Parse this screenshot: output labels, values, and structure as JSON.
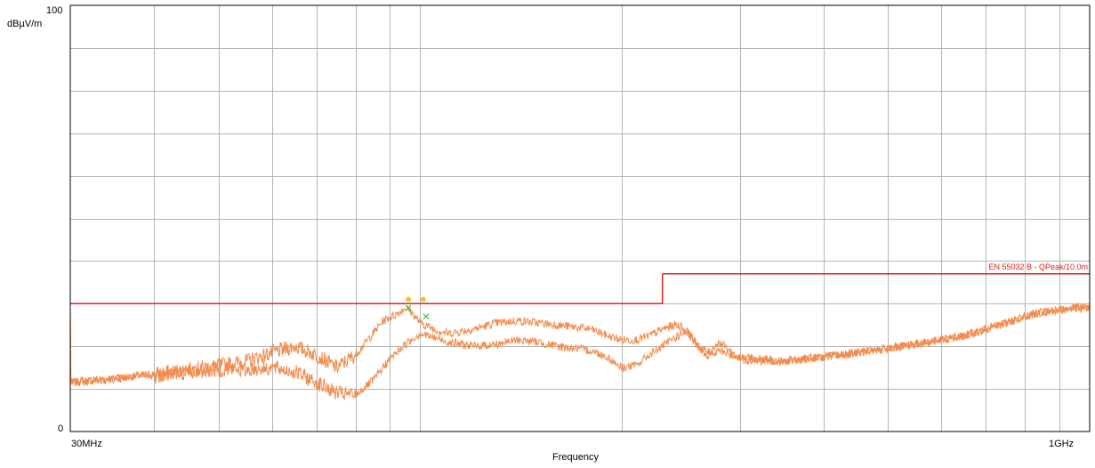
{
  "chart_data": {
    "type": "line",
    "title": "",
    "ylabel": "dBµV/m",
    "xlabel": "Frequency",
    "x_scale": "log",
    "xlim": [
      30,
      1000
    ],
    "ylim": [
      0,
      100
    ],
    "y_tick_labels": {
      "top": "100",
      "bottom": "0"
    },
    "x_tick_labels": {
      "left": "30MHz",
      "right": "1GHz"
    },
    "grid": true,
    "colors": {
      "limit": "#e0201b",
      "trace": "#f28a4c",
      "grid": "#b4b4b4",
      "marker_qp": "#f2c530",
      "marker_x": "#3cc33c"
    },
    "limit_line": {
      "label": "EN 55032 B - QPeak/10.0m",
      "segments": [
        {
          "x": [
            30,
            230
          ],
          "y": 30
        },
        {
          "x": [
            230,
            1000
          ],
          "y": 37
        }
      ]
    },
    "series": [
      {
        "points": [
          [
            30,
            11.5
          ],
          [
            35,
            12.5
          ],
          [
            40,
            13.5
          ],
          [
            45,
            14.5
          ],
          [
            50,
            15.5
          ],
          [
            55,
            16.5
          ],
          [
            60,
            18.5
          ],
          [
            65,
            20
          ],
          [
            70,
            18
          ],
          [
            75,
            15
          ],
          [
            80,
            18
          ],
          [
            85,
            23
          ],
          [
            88,
            26
          ],
          [
            92,
            27.5
          ],
          [
            95,
            29
          ],
          [
            97,
            28
          ],
          [
            100,
            25.5
          ],
          [
            105,
            24
          ],
          [
            110,
            23
          ],
          [
            120,
            24
          ],
          [
            130,
            25.5
          ],
          [
            140,
            26
          ],
          [
            150,
            25.5
          ],
          [
            160,
            25
          ],
          [
            170,
            24.5
          ],
          [
            180,
            24
          ],
          [
            190,
            22.5
          ],
          [
            200,
            21.5
          ],
          [
            210,
            21.5
          ],
          [
            220,
            22.5
          ],
          [
            230,
            24
          ],
          [
            240,
            25
          ],
          [
            245,
            24.8
          ],
          [
            250,
            23.5
          ],
          [
            260,
            20
          ],
          [
            270,
            18.5
          ],
          [
            275,
            20
          ],
          [
            280,
            21
          ],
          [
            290,
            19
          ],
          [
            300,
            17
          ],
          [
            320,
            16.5
          ],
          [
            350,
            16.5
          ],
          [
            400,
            17.5
          ],
          [
            450,
            18.5
          ],
          [
            500,
            19.5
          ],
          [
            550,
            20.5
          ],
          [
            600,
            21.5
          ],
          [
            650,
            22.5
          ],
          [
            700,
            24
          ],
          [
            750,
            25.5
          ],
          [
            800,
            27
          ],
          [
            850,
            28
          ],
          [
            900,
            28.5
          ],
          [
            950,
            29
          ],
          [
            1000,
            29
          ]
        ]
      },
      {
        "points": [
          [
            30,
            11.5
          ],
          [
            35,
            12.5
          ],
          [
            40,
            13
          ],
          [
            45,
            14
          ],
          [
            50,
            14.5
          ],
          [
            55,
            14.5
          ],
          [
            60,
            15
          ],
          [
            65,
            14
          ],
          [
            70,
            11.5
          ],
          [
            75,
            9
          ],
          [
            80,
            8.5
          ],
          [
            85,
            12
          ],
          [
            90,
            17
          ],
          [
            95,
            20.5
          ],
          [
            100,
            23
          ],
          [
            105,
            22
          ],
          [
            110,
            21
          ],
          [
            120,
            20
          ],
          [
            130,
            20.5
          ],
          [
            140,
            21.5
          ],
          [
            150,
            21
          ],
          [
            160,
            20
          ],
          [
            170,
            19.5
          ],
          [
            180,
            19
          ],
          [
            190,
            17.5
          ],
          [
            200,
            15
          ],
          [
            210,
            15.5
          ],
          [
            220,
            18
          ],
          [
            230,
            20
          ],
          [
            240,
            22
          ],
          [
            250,
            23.5
          ],
          [
            255,
            22
          ],
          [
            260,
            20
          ],
          [
            270,
            17.5
          ],
          [
            280,
            19
          ],
          [
            290,
            18
          ],
          [
            300,
            17.5
          ],
          [
            350,
            16.5
          ],
          [
            400,
            17.5
          ],
          [
            450,
            18.5
          ],
          [
            500,
            19.5
          ],
          [
            550,
            20.5
          ],
          [
            600,
            21.5
          ],
          [
            650,
            22.5
          ],
          [
            700,
            24
          ],
          [
            750,
            25.5
          ],
          [
            800,
            27
          ],
          [
            850,
            28
          ],
          [
            900,
            28.5
          ],
          [
            950,
            29
          ],
          [
            1000,
            29
          ]
        ]
      }
    ],
    "markers": [
      {
        "x": 96,
        "y": 31,
        "kind": "qp"
      },
      {
        "x": 101,
        "y": 31,
        "kind": "qp"
      },
      {
        "x": 96,
        "y": 29,
        "kind": "x"
      },
      {
        "x": 102,
        "y": 27,
        "kind": "x"
      }
    ]
  }
}
